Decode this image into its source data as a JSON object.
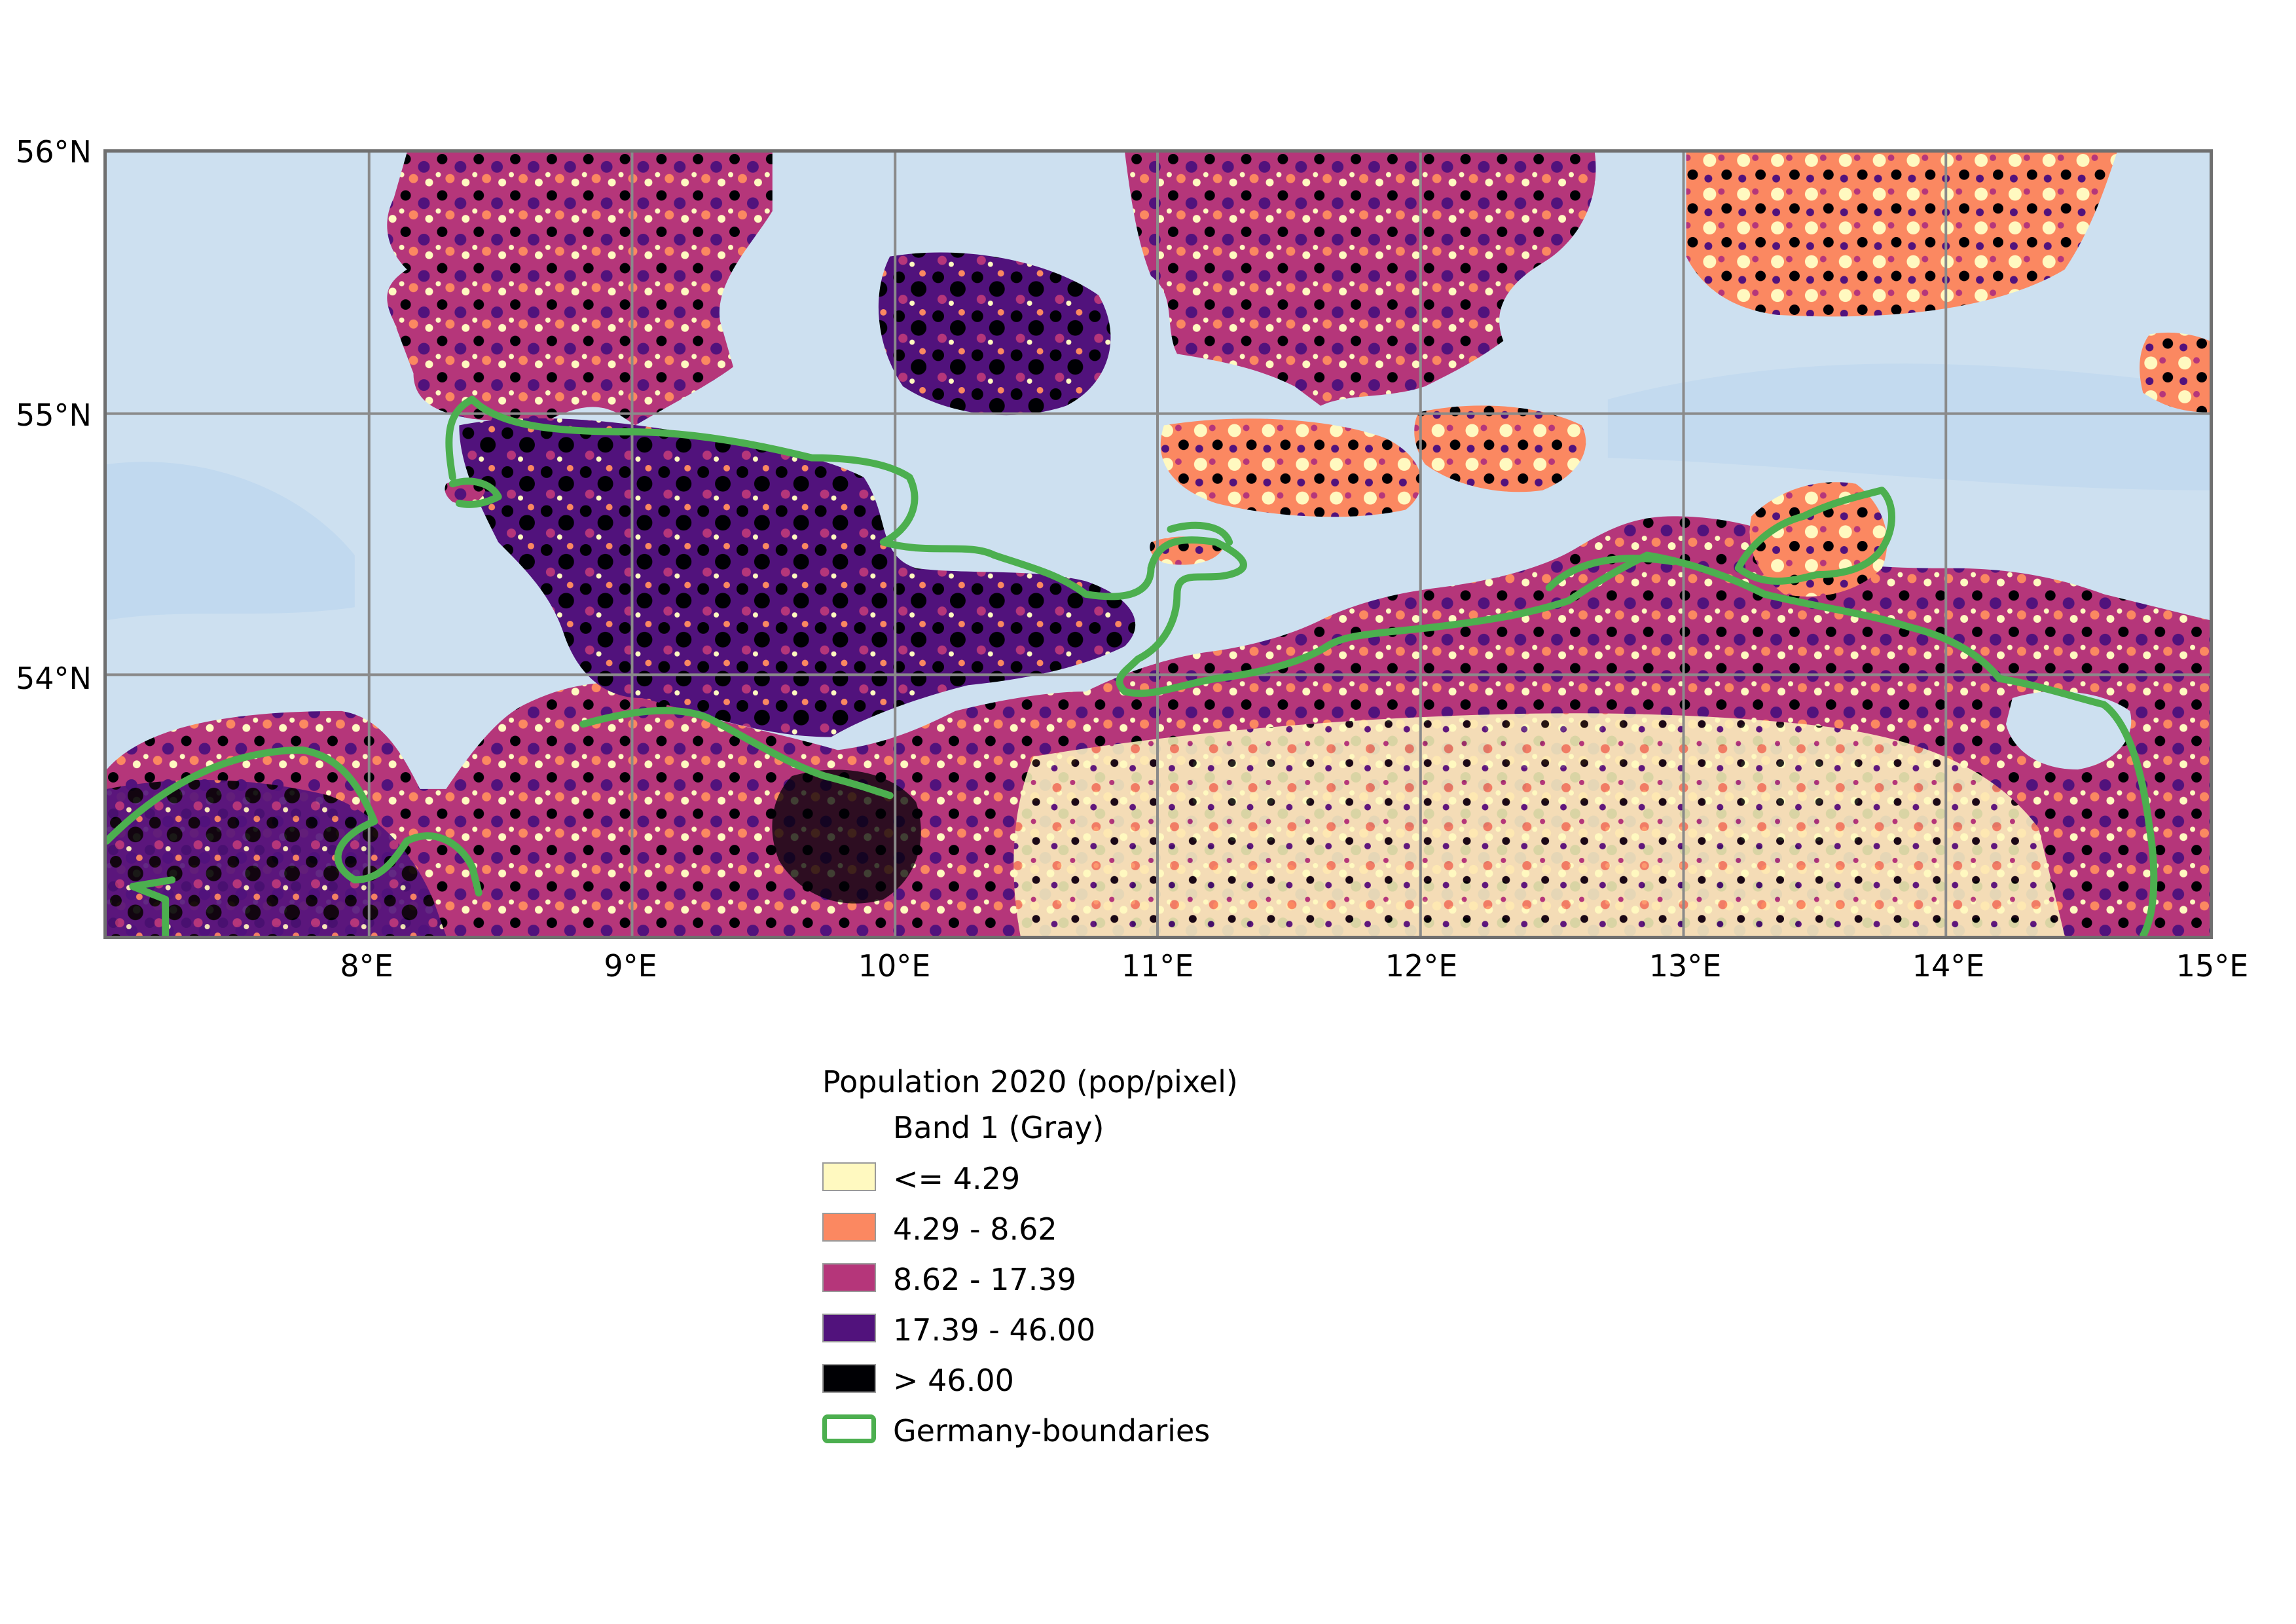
{
  "map": {
    "x_ticks": [
      "8°E",
      "9°E",
      "10°E",
      "11°E",
      "12°E",
      "13°E",
      "14°E",
      "15°E"
    ],
    "y_ticks": [
      "56°N",
      "55°N",
      "54°N"
    ],
    "colors": {
      "water": "#cde0f0",
      "boundary": "#4caf4f",
      "grid": "#8a8a8a"
    }
  },
  "legend": {
    "title": "Population 2020 (pop/pixel)",
    "band": "Band 1 (Gray)",
    "classes": [
      {
        "label": "<= 4.29",
        "color": "#fff9c0"
      },
      {
        "label": "4.29 - 8.62",
        "color": "#fb8861"
      },
      {
        "label": "8.62 - 17.39",
        "color": "#b5367a"
      },
      {
        "label": "17.39 - 46.00",
        "color": "#51127c"
      },
      {
        "label": "> 46.00",
        "color": "#000004"
      }
    ],
    "boundary_label": "Germany-boundaries"
  }
}
